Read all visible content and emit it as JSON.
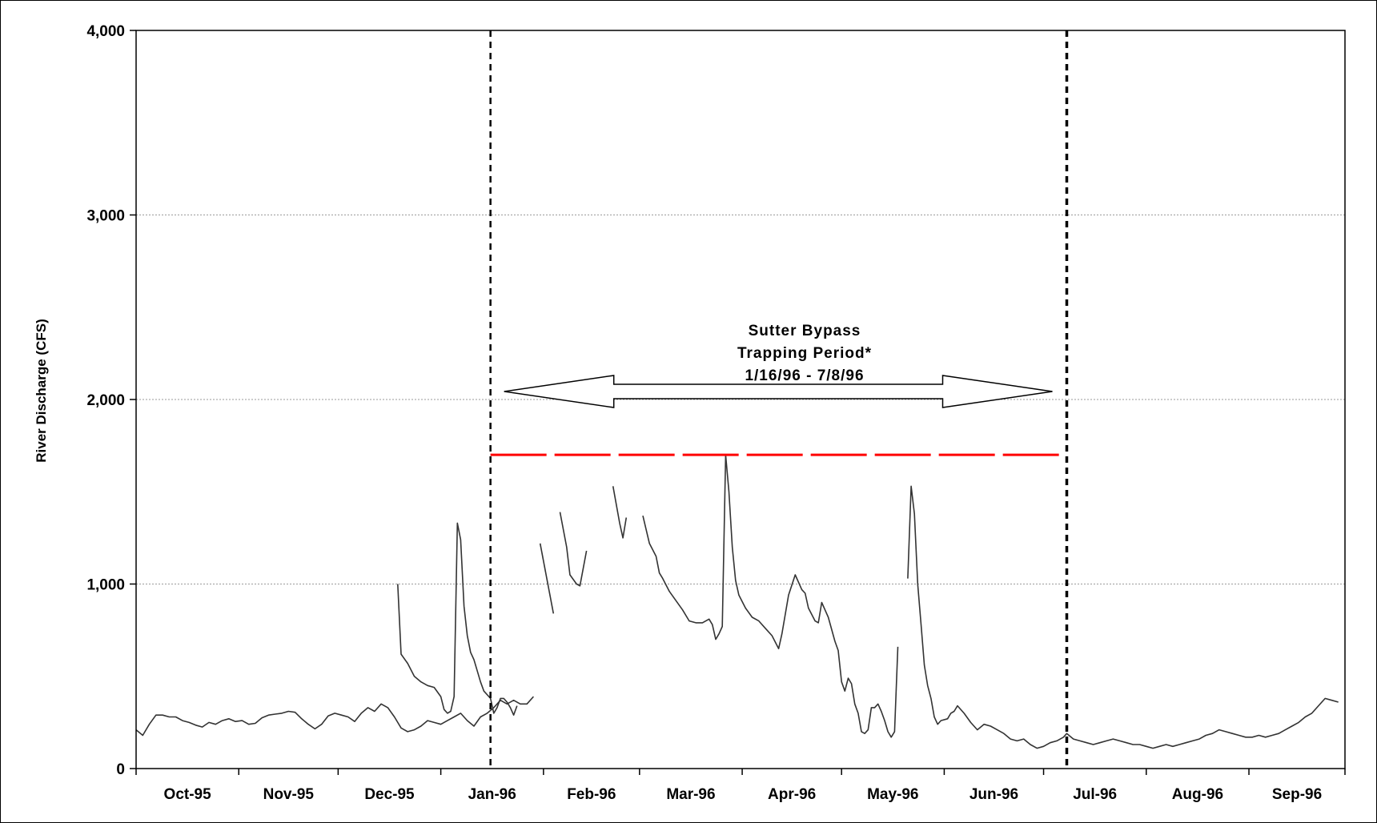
{
  "chart_data": {
    "type": "line",
    "title": "",
    "xlabel": "",
    "ylabel": "River Discharge (CFS)",
    "ylim": [
      0,
      4000
    ],
    "x_range": [
      "1995-10-01",
      "1996-09-30"
    ],
    "yticks": [
      0,
      1000,
      2000,
      3000,
      4000
    ],
    "ytick_labels": [
      "0",
      "1,000",
      "2,000",
      "3,000",
      "4,000"
    ],
    "xtick_dates": [
      "1995-10-01",
      "1995-11-01",
      "1995-12-01",
      "1996-01-01",
      "1996-02-01",
      "1996-03-01",
      "1996-04-01",
      "1996-05-01",
      "1996-06-01",
      "1996-07-01",
      "1996-08-01",
      "1996-09-01"
    ],
    "xtick_labels": [
      "Oct-95",
      "Nov-95",
      "Dec-95",
      "Jan-96",
      "Feb-96",
      "Mar-96",
      "Apr-96",
      "May-96",
      "Jun-96",
      "Jul-96",
      "Aug-96",
      "Sep-96"
    ],
    "grid": "horizontal dotted",
    "series": [
      {
        "color": "#333333",
        "segments": [
          [
            [
              "1995-10-01",
              210
            ],
            [
              "1995-10-03",
              180
            ],
            [
              "1995-10-05",
              240
            ],
            [
              "1995-10-07",
              290
            ],
            [
              "1995-10-09",
              290
            ],
            [
              "1995-10-11",
              280
            ],
            [
              "1995-10-13",
              280
            ],
            [
              "1995-10-15",
              260
            ],
            [
              "1995-10-17",
              250
            ],
            [
              "1995-10-19",
              235
            ],
            [
              "1995-10-21",
              225
            ],
            [
              "1995-10-23",
              250
            ],
            [
              "1995-10-25",
              240
            ],
            [
              "1995-10-27",
              260
            ],
            [
              "1995-10-29",
              270
            ],
            [
              "1995-10-31",
              255
            ],
            [
              "1995-11-02",
              260
            ],
            [
              "1995-11-04",
              240
            ],
            [
              "1995-11-06",
              245
            ],
            [
              "1995-11-08",
              275
            ],
            [
              "1995-11-10",
              290
            ],
            [
              "1995-11-12",
              295
            ],
            [
              "1995-11-14",
              300
            ],
            [
              "1995-11-16",
              310
            ],
            [
              "1995-11-18",
              305
            ],
            [
              "1995-11-20",
              270
            ],
            [
              "1995-11-22",
              240
            ],
            [
              "1995-11-24",
              215
            ],
            [
              "1995-11-26",
              240
            ],
            [
              "1995-11-28",
              285
            ],
            [
              "1995-11-30",
              300
            ],
            [
              "1995-12-02",
              290
            ],
            [
              "1995-12-04",
              280
            ],
            [
              "1995-12-06",
              255
            ],
            [
              "1995-12-08",
              300
            ],
            [
              "1995-12-10",
              330
            ],
            [
              "1995-12-12",
              310
            ],
            [
              "1995-12-14",
              350
            ],
            [
              "1995-12-16",
              330
            ],
            [
              "1995-12-18",
              280
            ],
            [
              "1995-12-20",
              220
            ],
            [
              "1995-12-22",
              200
            ],
            [
              "1995-12-24",
              210
            ],
            [
              "1995-12-26",
              230
            ],
            [
              "1995-12-28",
              260
            ],
            [
              "1995-12-30",
              250
            ],
            [
              "1996-01-01",
              240
            ],
            [
              "1996-01-03",
              260
            ],
            [
              "1996-01-05",
              280
            ],
            [
              "1996-01-07",
              300
            ],
            [
              "1996-01-09",
              260
            ],
            [
              "1996-01-11",
              230
            ],
            [
              "1996-01-13",
              280
            ],
            [
              "1996-01-15",
              300
            ],
            [
              "1996-01-17",
              330
            ],
            [
              "1996-01-19",
              370
            ],
            [
              "1996-01-21",
              350
            ],
            [
              "1996-01-23",
              370
            ],
            [
              "1996-01-25",
              350
            ],
            [
              "1996-01-27",
              350
            ],
            [
              "1996-01-29",
              390
            ]
          ],
          [
            [
              "1995-12-19",
              1000
            ],
            [
              "1995-12-20",
              620
            ],
            [
              "1995-12-22",
              570
            ],
            [
              "1995-12-24",
              500
            ],
            [
              "1995-12-26",
              470
            ],
            [
              "1995-12-28",
              450
            ],
            [
              "1995-12-30",
              440
            ],
            [
              "1996-01-01",
              390
            ],
            [
              "1996-01-02",
              320
            ],
            [
              "1996-01-03",
              300
            ],
            [
              "1996-01-04",
              310
            ],
            [
              "1996-01-05",
              390
            ],
            [
              "1996-01-06",
              1330
            ],
            [
              "1996-01-07",
              1240
            ],
            [
              "1996-01-08",
              880
            ],
            [
              "1996-01-09",
              720
            ],
            [
              "1996-01-10",
              630
            ],
            [
              "1996-01-11",
              590
            ],
            [
              "1996-01-12",
              530
            ],
            [
              "1996-01-13",
              470
            ],
            [
              "1996-01-14",
              420
            ],
            [
              "1996-01-16",
              380
            ],
            [
              "1996-01-17",
              300
            ],
            [
              "1996-01-18",
              330
            ],
            [
              "1996-01-19",
              380
            ],
            [
              "1996-01-20",
              380
            ],
            [
              "1996-01-21",
              360
            ],
            [
              "1996-01-22",
              330
            ],
            [
              "1996-01-23",
              290
            ],
            [
              "1996-01-24",
              340
            ]
          ],
          [
            [
              "1996-01-31",
              1220
            ],
            [
              "1996-02-04",
              840
            ]
          ],
          [
            [
              "1996-02-06",
              1390
            ],
            [
              "1996-02-08",
              1200
            ],
            [
              "1996-02-09",
              1050
            ],
            [
              "1996-02-11",
              1000
            ],
            [
              "1996-02-12",
              990
            ],
            [
              "1996-02-14",
              1180
            ]
          ],
          [
            [
              "1996-02-22",
              1530
            ],
            [
              "1996-02-24",
              1330
            ],
            [
              "1996-02-25",
              1250
            ],
            [
              "1996-02-26",
              1360
            ]
          ],
          [
            [
              "1996-03-02",
              1370
            ],
            [
              "1996-03-04",
              1220
            ],
            [
              "1996-03-06",
              1150
            ],
            [
              "1996-03-07",
              1060
            ],
            [
              "1996-03-08",
              1030
            ],
            [
              "1996-03-10",
              960
            ],
            [
              "1996-03-12",
              910
            ],
            [
              "1996-03-14",
              860
            ],
            [
              "1996-03-16",
              800
            ],
            [
              "1996-03-18",
              790
            ],
            [
              "1996-03-20",
              790
            ],
            [
              "1996-03-22",
              810
            ],
            [
              "1996-03-23",
              780
            ],
            [
              "1996-03-24",
              700
            ],
            [
              "1996-03-25",
              730
            ],
            [
              "1996-03-26",
              770
            ],
            [
              "1996-03-27",
              1700
            ],
            [
              "1996-03-28",
              1500
            ],
            [
              "1996-03-29",
              1200
            ],
            [
              "1996-03-30",
              1020
            ],
            [
              "1996-03-31",
              940
            ],
            [
              "1996-04-02",
              870
            ],
            [
              "1996-04-04",
              820
            ],
            [
              "1996-04-06",
              800
            ],
            [
              "1996-04-08",
              760
            ],
            [
              "1996-04-10",
              720
            ],
            [
              "1996-04-12",
              650
            ],
            [
              "1996-04-13",
              730
            ],
            [
              "1996-04-15",
              940
            ],
            [
              "1996-04-17",
              1050
            ],
            [
              "1996-04-19",
              970
            ],
            [
              "1996-04-20",
              950
            ],
            [
              "1996-04-21",
              870
            ],
            [
              "1996-04-23",
              800
            ],
            [
              "1996-04-24",
              790
            ],
            [
              "1996-04-25",
              900
            ],
            [
              "1996-04-27",
              820
            ],
            [
              "1996-04-29",
              690
            ],
            [
              "1996-04-30",
              640
            ],
            [
              "1996-05-01",
              470
            ],
            [
              "1996-05-02",
              420
            ],
            [
              "1996-05-03",
              490
            ],
            [
              "1996-05-04",
              460
            ],
            [
              "1996-05-05",
              350
            ],
            [
              "1996-05-06",
              300
            ],
            [
              "1996-05-07",
              200
            ],
            [
              "1996-05-08",
              190
            ],
            [
              "1996-05-09",
              210
            ],
            [
              "1996-05-10",
              330
            ],
            [
              "1996-05-11",
              330
            ],
            [
              "1996-05-12",
              350
            ],
            [
              "1996-05-13",
              310
            ],
            [
              "1996-05-14",
              260
            ],
            [
              "1996-05-15",
              200
            ],
            [
              "1996-05-16",
              170
            ],
            [
              "1996-05-17",
              200
            ],
            [
              "1996-05-18",
              660
            ]
          ],
          [
            [
              "1996-05-21",
              1030
            ],
            [
              "1996-05-22",
              1530
            ],
            [
              "1996-05-23",
              1380
            ],
            [
              "1996-05-24",
              1000
            ],
            [
              "1996-05-25",
              780
            ],
            [
              "1996-05-26",
              560
            ],
            [
              "1996-05-27",
              450
            ],
            [
              "1996-05-28",
              380
            ],
            [
              "1996-05-29",
              280
            ],
            [
              "1996-05-30",
              240
            ],
            [
              "1996-05-31",
              260
            ],
            [
              "1996-06-02",
              270
            ],
            [
              "1996-06-03",
              300
            ],
            [
              "1996-06-04",
              310
            ],
            [
              "1996-06-05",
              340
            ],
            [
              "1996-06-07",
              300
            ],
            [
              "1996-06-09",
              250
            ],
            [
              "1996-06-11",
              210
            ],
            [
              "1996-06-13",
              240
            ],
            [
              "1996-06-15",
              230
            ],
            [
              "1996-06-17",
              210
            ],
            [
              "1996-06-19",
              190
            ],
            [
              "1996-06-21",
              160
            ],
            [
              "1996-06-23",
              150
            ],
            [
              "1996-06-25",
              160
            ],
            [
              "1996-06-27",
              130
            ],
            [
              "1996-06-29",
              110
            ],
            [
              "1996-07-01",
              120
            ],
            [
              "1996-07-03",
              140
            ],
            [
              "1996-07-05",
              150
            ],
            [
              "1996-07-07",
              170
            ],
            [
              "1996-07-08",
              190
            ],
            [
              "1996-07-10",
              160
            ],
            [
              "1996-07-12",
              150
            ],
            [
              "1996-07-14",
              140
            ],
            [
              "1996-07-16",
              130
            ],
            [
              "1996-07-18",
              140
            ],
            [
              "1996-07-20",
              150
            ],
            [
              "1996-07-22",
              160
            ],
            [
              "1996-07-24",
              150
            ],
            [
              "1996-07-26",
              140
            ],
            [
              "1996-07-28",
              130
            ],
            [
              "1996-07-30",
              130
            ],
            [
              "1996-08-01",
              120
            ],
            [
              "1996-08-03",
              110
            ],
            [
              "1996-08-05",
              120
            ],
            [
              "1996-08-07",
              130
            ],
            [
              "1996-08-09",
              120
            ],
            [
              "1996-08-11",
              130
            ],
            [
              "1996-08-13",
              140
            ],
            [
              "1996-08-15",
              150
            ],
            [
              "1996-08-17",
              160
            ],
            [
              "1996-08-19",
              180
            ],
            [
              "1996-08-21",
              190
            ],
            [
              "1996-08-23",
              210
            ],
            [
              "1996-08-25",
              200
            ],
            [
              "1996-08-27",
              190
            ],
            [
              "1996-08-29",
              180
            ],
            [
              "1996-08-31",
              170
            ],
            [
              "1996-09-02",
              170
            ],
            [
              "1996-09-04",
              180
            ],
            [
              "1996-09-06",
              170
            ],
            [
              "1996-09-08",
              180
            ],
            [
              "1996-09-10",
              190
            ],
            [
              "1996-09-12",
              210
            ],
            [
              "1996-09-14",
              230
            ],
            [
              "1996-09-16",
              250
            ],
            [
              "1996-09-18",
              280
            ],
            [
              "1996-09-20",
              300
            ],
            [
              "1996-09-22",
              340
            ],
            [
              "1996-09-24",
              380
            ],
            [
              "1996-09-26",
              370
            ],
            [
              "1996-09-28",
              360
            ]
          ]
        ]
      }
    ],
    "capacity_line": {
      "color": "#ff0000",
      "value": 1700,
      "start": "1996-01-16",
      "end": "1996-07-08"
    },
    "period_markers": [
      "1996-01-16",
      "1996-07-08"
    ],
    "annotation": {
      "lines": [
        "Sutter Bypass",
        "Trapping Period*",
        "1/16/96 - 7/8/96"
      ]
    }
  }
}
